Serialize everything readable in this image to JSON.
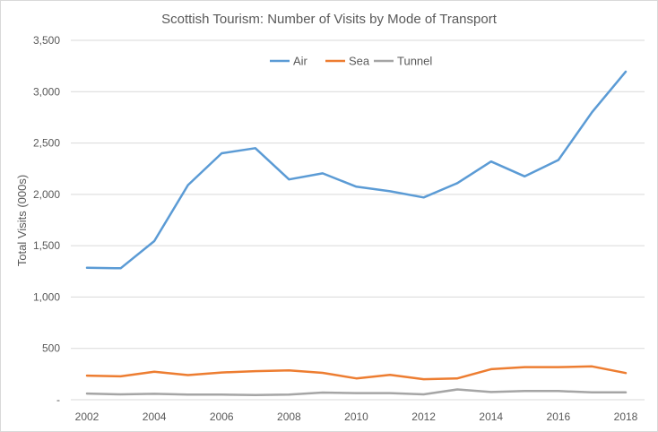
{
  "chart_data": {
    "type": "line",
    "title": "Scottish Tourism: Number of Visits by Mode of Transport",
    "xlabel": "",
    "ylabel": "Total Visits (000s)",
    "x": [
      2002,
      2003,
      2004,
      2005,
      2006,
      2007,
      2008,
      2009,
      2010,
      2011,
      2012,
      2013,
      2014,
      2015,
      2016,
      2017,
      2018
    ],
    "x_tick_labels": [
      "2002",
      "2004",
      "2006",
      "2008",
      "2010",
      "2012",
      "2014",
      "2016",
      "2018"
    ],
    "ylim": [
      0,
      3500
    ],
    "y_ticks": [
      0,
      500,
      1000,
      1500,
      2000,
      2500,
      3000,
      3500
    ],
    "y_tick_labels": [
      "-",
      "500",
      "1,000",
      "1,500",
      "2,000",
      "2,500",
      "3,000",
      "3,500"
    ],
    "grid": true,
    "legend_position": "top-center",
    "series": [
      {
        "name": "Air",
        "color": "#5b9bd5",
        "values": [
          1285,
          1280,
          1545,
          2090,
          2400,
          2450,
          2145,
          2205,
          2075,
          2030,
          1970,
          2110,
          2320,
          2175,
          2335,
          2800,
          3195
        ]
      },
      {
        "name": "Sea",
        "color": "#ed7d31",
        "values": [
          235,
          228,
          272,
          240,
          265,
          278,
          285,
          262,
          208,
          242,
          200,
          208,
          298,
          318,
          318,
          325,
          260
        ]
      },
      {
        "name": "Tunnel",
        "color": "#a5a5a5",
        "values": [
          60,
          52,
          58,
          50,
          50,
          45,
          50,
          70,
          65,
          65,
          52,
          100,
          75,
          85,
          85,
          72,
          72
        ]
      }
    ]
  }
}
